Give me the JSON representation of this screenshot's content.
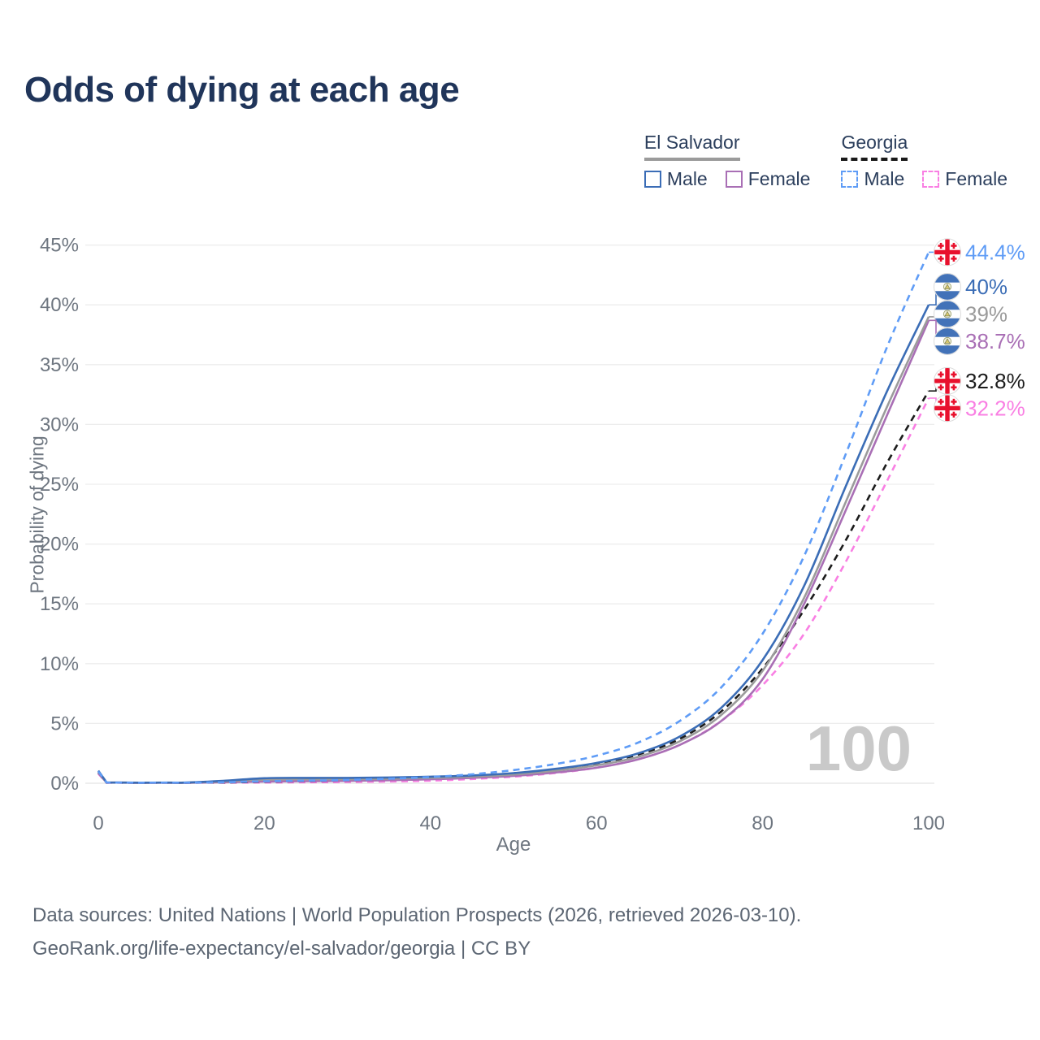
{
  "title": "Odds of dying at each age",
  "legend": {
    "groups": [
      {
        "label": "El Salvador",
        "underline_color": "#9b9b9b",
        "underline_style": "solid",
        "items": [
          {
            "label": "Male",
            "color": "#3b6db6",
            "dashed": false
          },
          {
            "label": "Female",
            "color": "#a96fb5",
            "dashed": false
          }
        ]
      },
      {
        "label": "Georgia",
        "underline_color": "#1a1a1a",
        "underline_style": "dashed",
        "items": [
          {
            "label": "Male",
            "color": "#5f9cf6",
            "dashed": true
          },
          {
            "label": "Female",
            "color": "#f97fe3",
            "dashed": true
          }
        ]
      }
    ]
  },
  "watermark": "100",
  "footer": {
    "line1": "Data sources: United Nations | World Population Prospects (2026, retrieved 2026-03-10).",
    "line2": "GeoRank.org/life-expectancy/el-salvador/georgia | CC BY"
  },
  "chart_data": {
    "type": "line",
    "title": "Odds of dying at each age",
    "xlabel": "Age",
    "ylabel": "Probability of dying",
    "xlim": [
      0,
      100
    ],
    "ylim": [
      0,
      45
    ],
    "xticks": [
      0,
      20,
      40,
      60,
      80,
      100
    ],
    "yticks": [
      0,
      5,
      10,
      15,
      20,
      25,
      30,
      35,
      40,
      45
    ],
    "ytick_suffix": "%",
    "grid": true,
    "legend_position": "top-right",
    "ages": [
      0,
      1,
      5,
      10,
      15,
      20,
      25,
      30,
      35,
      40,
      45,
      50,
      55,
      60,
      65,
      70,
      75,
      80,
      85,
      90,
      95,
      100
    ],
    "series": [
      {
        "name": "Georgia Male",
        "country": "Georgia",
        "sex": "Male",
        "flag": "georgia",
        "color": "#5f9cf6",
        "dashed": true,
        "end_label": "44.4%",
        "values": [
          1.0,
          0.06,
          0.04,
          0.04,
          0.08,
          0.17,
          0.22,
          0.28,
          0.38,
          0.52,
          0.75,
          1.1,
          1.6,
          2.3,
          3.4,
          5.2,
          8.0,
          12.5,
          19.0,
          27.5,
          36.5,
          44.4
        ]
      },
      {
        "name": "El Salvador Male",
        "country": "El Salvador",
        "sex": "Male",
        "flag": "el-salvador",
        "color": "#3b6db6",
        "dashed": false,
        "end_label": "40%",
        "values": [
          1.05,
          0.07,
          0.05,
          0.05,
          0.2,
          0.42,
          0.45,
          0.45,
          0.48,
          0.55,
          0.65,
          0.85,
          1.2,
          1.7,
          2.5,
          3.9,
          6.3,
          10.3,
          16.5,
          24.8,
          32.8,
          40.0
        ]
      },
      {
        "name": "El Salvador Both sexes",
        "country": "El Salvador",
        "sex": "Both",
        "flag": "el-salvador",
        "color": "#9b9b9b",
        "dashed": false,
        "end_label": "39%",
        "values": [
          0.95,
          0.06,
          0.04,
          0.04,
          0.15,
          0.3,
          0.33,
          0.34,
          0.38,
          0.45,
          0.55,
          0.73,
          1.05,
          1.5,
          2.2,
          3.5,
          5.7,
          9.4,
          15.5,
          23.5,
          31.5,
          39.0
        ]
      },
      {
        "name": "El Salvador Female",
        "country": "El Salvador",
        "sex": "Female",
        "flag": "el-salvador",
        "color": "#a96fb5",
        "dashed": false,
        "end_label": "38.7%",
        "values": [
          0.85,
          0.05,
          0.03,
          0.03,
          0.08,
          0.14,
          0.17,
          0.2,
          0.25,
          0.33,
          0.45,
          0.62,
          0.9,
          1.3,
          2.0,
          3.2,
          5.2,
          8.7,
          15.0,
          22.8,
          30.8,
          38.7
        ]
      },
      {
        "name": "Georgia Both sexes",
        "country": "Georgia",
        "sex": "Both",
        "flag": "georgia",
        "color": "#1c1c1c",
        "dashed": true,
        "end_label": "32.8%",
        "values": [
          0.9,
          0.05,
          0.03,
          0.03,
          0.06,
          0.12,
          0.16,
          0.2,
          0.28,
          0.4,
          0.58,
          0.8,
          1.15,
          1.65,
          2.4,
          3.7,
          6.0,
          9.6,
          14.5,
          20.3,
          26.8,
          32.8
        ]
      },
      {
        "name": "Georgia Female",
        "country": "Georgia",
        "sex": "Female",
        "flag": "georgia",
        "color": "#f97fe3",
        "dashed": true,
        "end_label": "32.2%",
        "values": [
          0.8,
          0.04,
          0.03,
          0.03,
          0.04,
          0.06,
          0.08,
          0.1,
          0.15,
          0.22,
          0.35,
          0.55,
          0.85,
          1.3,
          2.0,
          3.2,
          5.2,
          8.2,
          12.5,
          18.5,
          25.3,
          32.2
        ]
      }
    ]
  }
}
